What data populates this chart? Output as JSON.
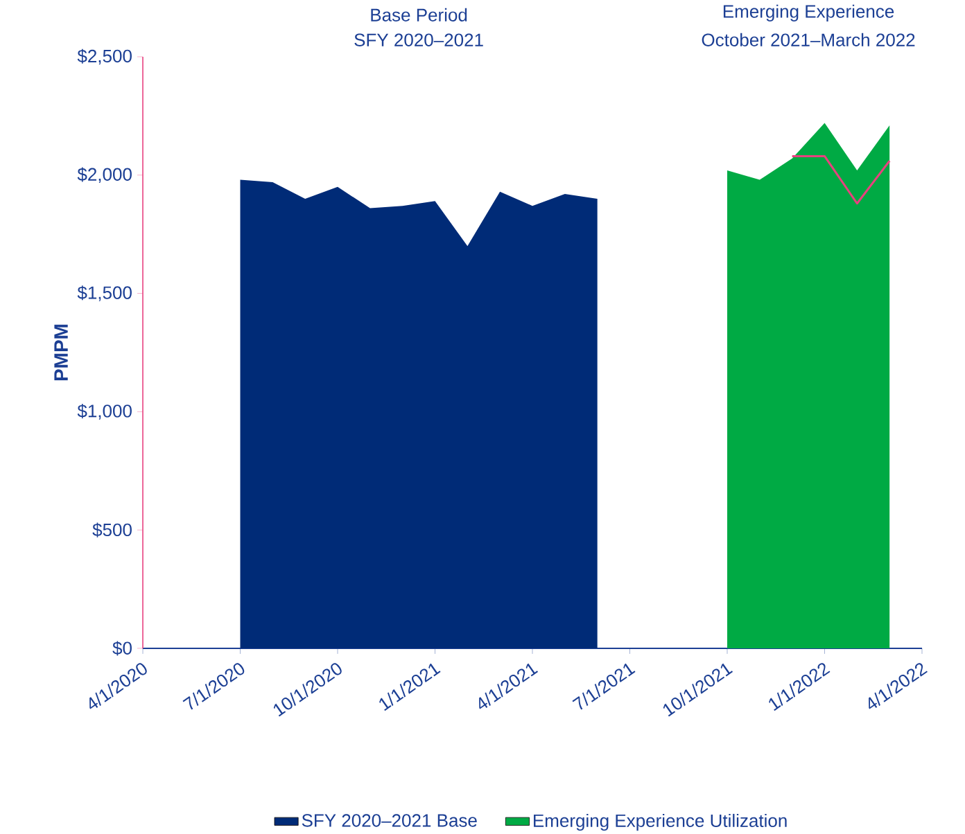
{
  "chart_data": {
    "type": "area",
    "ylabel": "PMPM",
    "annotations": [
      "Base Period",
      "SFY 2020–2021",
      "Emerging Experience",
      "October 2021–March 2022"
    ],
    "xlim": [
      "2020-04-01",
      "2022-04-01"
    ],
    "xticks": [
      {
        "value": "2020-04-01",
        "label": "4/1/2020"
      },
      {
        "value": "2020-07-01",
        "label": "7/1/2020"
      },
      {
        "value": "2020-10-01",
        "label": "10/1/2020"
      },
      {
        "value": "2021-01-01",
        "label": "1/1/2021"
      },
      {
        "value": "2021-04-01",
        "label": "4/1/2021"
      },
      {
        "value": "2021-07-01",
        "label": "7/1/2021"
      },
      {
        "value": "2021-10-01",
        "label": "10/1/2021"
      },
      {
        "value": "2022-01-01",
        "label": "1/1/2022"
      },
      {
        "value": "2022-04-01",
        "label": "4/1/2022"
      }
    ],
    "ylim": [
      0,
      2500
    ],
    "yticks": [
      {
        "value": 0,
        "label": "$0"
      },
      {
        "value": 500,
        "label": "$500"
      },
      {
        "value": 1000,
        "label": "$1,000"
      },
      {
        "value": 1500,
        "label": "$1,500"
      },
      {
        "value": 2000,
        "label": "$2,000"
      },
      {
        "value": 2500,
        "label": "$2,500"
      }
    ],
    "legend": "bottom",
    "grid": false,
    "series": [
      {
        "name": "SFY 2020–2021 Base",
        "color": "#002b77",
        "x": [
          "2020-07-01",
          "2020-08-01",
          "2020-09-01",
          "2020-10-01",
          "2020-11-01",
          "2020-12-01",
          "2021-01-01",
          "2021-02-01",
          "2021-03-01",
          "2021-04-01",
          "2021-05-01",
          "2021-06-01"
        ],
        "values": [
          1980,
          1970,
          1900,
          1950,
          1860,
          1870,
          1890,
          1700,
          1930,
          1870,
          1920,
          1900
        ]
      },
      {
        "name": "Emerging Experience Utilization",
        "color": "#00aa44",
        "x": [
          "2021-10-01",
          "2021-11-01",
          "2021-12-01",
          "2022-01-01",
          "2022-02-01",
          "2022-03-01"
        ],
        "values": [
          2020,
          1980,
          2070,
          2220,
          2020,
          2210
        ]
      },
      {
        "type": "line",
        "color": "#e8417f",
        "x": [
          "2021-12-01",
          "2022-01-01",
          "2022-02-01",
          "2022-03-01"
        ],
        "values": [
          2080,
          2080,
          1880,
          2060
        ]
      }
    ]
  }
}
